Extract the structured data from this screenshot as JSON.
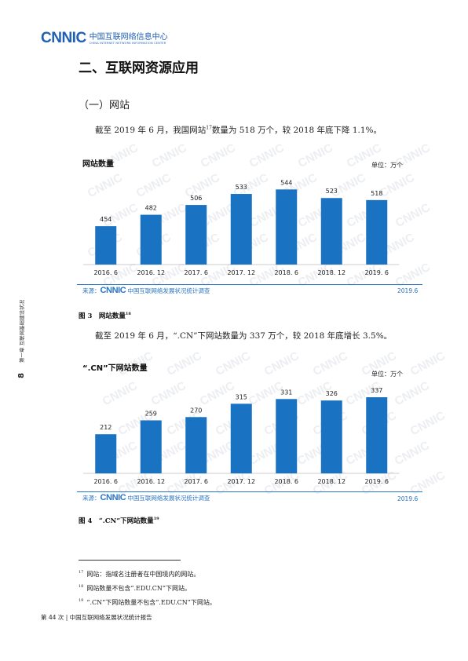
{
  "header": {
    "logo_mark": "CNNIC",
    "logo_cn": "中国互联网络信息中心",
    "logo_en": "CHINA INTERNET NETWORK INFORMATION CENTER"
  },
  "section_title": "二、互联网资源应用",
  "subsection_title": "（一）网站",
  "paragraphs": {
    "p1_pre": "截至 2019 年 6 月，我国网站",
    "p1_sup": "17",
    "p1_post": "数量为 518 万个，较 2018 年底下降 1.1%。",
    "p2": "截至 2019 年 6 月，“.CN”下网站数量为 337 万个，较 2018 年底增长 3.5%。"
  },
  "sidebar": {
    "page_num": "8",
    "chapter": "第一章 互联网基础建设状况"
  },
  "charts": {
    "fig3": {
      "title": "网站数量",
      "unit": "单位：万个",
      "source_label": "来源：",
      "source_logo": "CNNIC",
      "source_name": "中国互联网络发展状况统计调查",
      "date": "2019.6",
      "caption": "图 3　网站数量",
      "caption_sup": "18"
    },
    "fig4": {
      "title": "“.CN”下网站数量",
      "unit": "单位：万个",
      "source_label": "来源：",
      "source_logo": "CNNIC",
      "source_name": "中国互联网络发展状况统计调查",
      "date": "2019.6",
      "caption": "图 4　“.CN”下网站数量",
      "caption_sup": "19"
    }
  },
  "chart_data": [
    {
      "type": "bar",
      "title": "网站数量",
      "categories": [
        "2016. 6",
        "2016. 12",
        "2017. 6",
        "2017. 12",
        "2018. 6",
        "2018. 12",
        "2019. 6"
      ],
      "values": [
        454,
        482,
        506,
        533,
        544,
        523,
        518
      ],
      "ylabel": "单位：万个",
      "ylim": [
        360,
        560
      ],
      "bar_color": "#1a72c2"
    },
    {
      "type": "bar",
      "title": "“.CN”下网站数量",
      "categories": [
        "2016. 6",
        "2016. 12",
        "2017. 6",
        "2017. 12",
        "2018. 6",
        "2018. 12",
        "2019. 6"
      ],
      "values": [
        212,
        259,
        270,
        315,
        331,
        326,
        337
      ],
      "ylabel": "单位：万个",
      "ylim": [
        80,
        345
      ],
      "bar_color": "#1a72c2"
    }
  ],
  "footnotes": [
    {
      "num": "17",
      "text": "网站：指域名注册者在中国境内的网站。"
    },
    {
      "num": "18",
      "text": "网站数量不包含“.EDU.CN”下网站。"
    },
    {
      "num": "19",
      "text": "“.CN”下网站数量不包含“.EDU.CN”下网站。"
    }
  ],
  "footer": "第 44 次 | 中国互联网络发展状况统计报告"
}
